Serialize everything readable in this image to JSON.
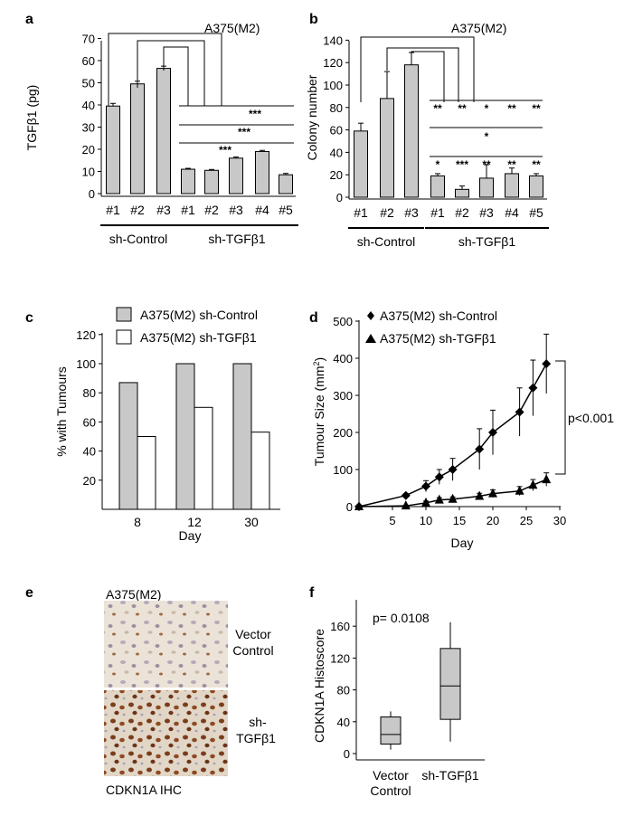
{
  "chart_data": [
    {
      "panel": "a",
      "type": "bar",
      "title": "A375(M2)",
      "ylabel": "TGFβ1 (pg)",
      "ylim": [
        0,
        70
      ],
      "yticks": [
        0,
        10,
        20,
        30,
        40,
        50,
        60,
        70
      ],
      "categories": [
        "#1",
        "#2",
        "#3",
        "#1",
        "#2",
        "#3",
        "#4",
        "#5"
      ],
      "values": [
        39.5,
        49.5,
        56.5,
        11,
        10.5,
        16,
        19,
        8.5
      ],
      "errors": [
        1.2,
        1.2,
        1.0,
        0.4,
        0.4,
        0.5,
        0.5,
        0.6
      ],
      "groups": [
        {
          "label": "sh-Control",
          "count": 3
        },
        {
          "label": "sh-TGFβ1",
          "count": 5
        }
      ],
      "significance": [
        "***",
        "***",
        "***"
      ]
    },
    {
      "panel": "b",
      "type": "bar",
      "title": "A375(M2)",
      "ylabel": "Colony  number",
      "ylim": [
        0,
        140
      ],
      "yticks": [
        0,
        20,
        40,
        60,
        80,
        100,
        120,
        140
      ],
      "categories": [
        "#1",
        "#2",
        "#3",
        "#1",
        "#2",
        "#3",
        "#4",
        "#5"
      ],
      "values": [
        59,
        88,
        118,
        19,
        7,
        17,
        21,
        19
      ],
      "errors": [
        7,
        24,
        11,
        2,
        3,
        12,
        5,
        2
      ],
      "groups": [
        {
          "label": "sh-Control",
          "count": 3
        },
        {
          "label": "sh-TGFβ1",
          "count": 5
        }
      ],
      "significance_row1": [
        "**",
        "**",
        "*",
        "**",
        "**"
      ],
      "significance_row2": [
        "*"
      ],
      "significance_row3": [
        "*",
        "***",
        "**",
        "**",
        "**"
      ]
    },
    {
      "panel": "c",
      "type": "bar",
      "xlabel": "Day",
      "ylabel": "% with Tumours",
      "ylim": [
        0,
        120
      ],
      "yticks": [
        20,
        40,
        60,
        80,
        100,
        120
      ],
      "categories": [
        "8",
        "12",
        "30"
      ],
      "series": [
        {
          "name": "A375(M2) sh-Control",
          "values": [
            87,
            100,
            100
          ]
        },
        {
          "name": "A375(M2) sh-TGFβ1",
          "values": [
            50,
            70,
            53
          ]
        }
      ]
    },
    {
      "panel": "d",
      "type": "line",
      "xlabel": "Day",
      "ylabel_main": "Tumour Size (mm",
      "ylabel_sup": "2",
      "ylabel_end": ")",
      "xlim": [
        0,
        30
      ],
      "ylim": [
        0,
        500
      ],
      "xticks": [
        5,
        10,
        15,
        20,
        25,
        30
      ],
      "yticks": [
        0,
        100,
        200,
        300,
        400,
        500
      ],
      "annotation": "p<0.001",
      "series": [
        {
          "name": "A375(M2) sh-Control",
          "marker": "diamond",
          "x": [
            0,
            7,
            10,
            12,
            14,
            18,
            20,
            24,
            26,
            28
          ],
          "y": [
            0,
            30,
            55,
            80,
            100,
            155,
            200,
            255,
            320,
            385
          ],
          "err": [
            0,
            5,
            15,
            20,
            30,
            55,
            60,
            65,
            75,
            80
          ]
        },
        {
          "name": "A375(M2) sh-TGFβ1",
          "marker": "triangle",
          "x": [
            0,
            7,
            10,
            12,
            14,
            18,
            20,
            24,
            26,
            28
          ],
          "y": [
            0,
            2,
            10,
            18,
            20,
            28,
            35,
            42,
            58,
            73
          ],
          "err": [
            0,
            2,
            5,
            6,
            6,
            8,
            10,
            12,
            15,
            18
          ]
        }
      ]
    },
    {
      "panel": "f",
      "type": "box",
      "ylabel": "CDKN1A  Histoscore",
      "ylim": [
        0,
        180
      ],
      "yticks": [
        0,
        40,
        80,
        120,
        160
      ],
      "annotation": "p= 0.0108",
      "categories": [
        [
          "Vector",
          "Control"
        ],
        [
          "sh-TGFβ1"
        ]
      ],
      "boxes": [
        {
          "min": 5,
          "q1": 12,
          "median": 24,
          "q3": 46,
          "max": 53
        },
        {
          "min": 15,
          "q1": 43,
          "median": 85,
          "q3": 132,
          "max": 165
        }
      ]
    }
  ],
  "panel_e": {
    "label": "e",
    "title": "A375(M2)",
    "caption": "CDKN1A IHC",
    "images": [
      {
        "label_line1": "Vector",
        "label_line2": "Control"
      },
      {
        "label_line1": "sh-",
        "label_line2": "TGFβ1"
      }
    ]
  },
  "colors": {
    "gray": "#c8c8c8",
    "tissue_light": "#e8dfd4",
    "tissue_brown": "#7a3e1c"
  }
}
